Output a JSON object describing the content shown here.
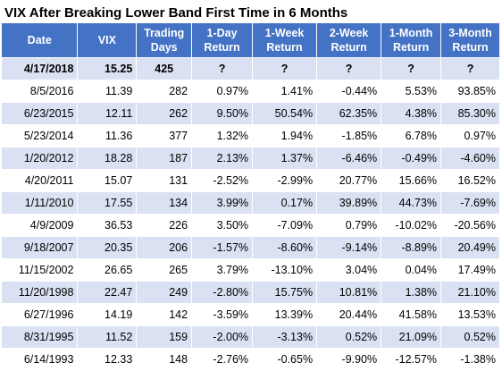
{
  "title": "VIX After Breaking Lower Band First Time in 6 Months",
  "colors": {
    "header_bg": "#4472c4",
    "header_text": "#ffffff",
    "band_row": "#d9e1f2",
    "plain_row": "#ffffff"
  },
  "table": {
    "headers": [
      [
        "Date"
      ],
      [
        "VIX"
      ],
      [
        "Trading",
        "Days"
      ],
      [
        "1-Day",
        "Return"
      ],
      [
        "1-Week",
        "Return"
      ],
      [
        "2-Week",
        "Return"
      ],
      [
        "1-Month",
        "Return"
      ],
      [
        "3-Month",
        "Return"
      ]
    ],
    "rows": [
      [
        "4/17/2018",
        "15.25",
        "425",
        "?",
        "?",
        "?",
        "?",
        "?"
      ],
      [
        "8/5/2016",
        "11.39",
        "282",
        "0.97%",
        "1.41%",
        "-0.44%",
        "5.53%",
        "93.85%"
      ],
      [
        "6/23/2015",
        "12.11",
        "262",
        "9.50%",
        "50.54%",
        "62.35%",
        "4.38%",
        "85.30%"
      ],
      [
        "5/23/2014",
        "11.36",
        "377",
        "1.32%",
        "1.94%",
        "-1.85%",
        "6.78%",
        "0.97%"
      ],
      [
        "1/20/2012",
        "18.28",
        "187",
        "2.13%",
        "1.37%",
        "-6.46%",
        "-0.49%",
        "-4.60%"
      ],
      [
        "4/20/2011",
        "15.07",
        "131",
        "-2.52%",
        "-2.99%",
        "20.77%",
        "15.66%",
        "16.52%"
      ],
      [
        "1/11/2010",
        "17.55",
        "134",
        "3.99%",
        "0.17%",
        "39.89%",
        "44.73%",
        "-7.69%"
      ],
      [
        "4/9/2009",
        "36.53",
        "226",
        "3.50%",
        "-7.09%",
        "0.79%",
        "-10.02%",
        "-20.56%"
      ],
      [
        "9/18/2007",
        "20.35",
        "206",
        "-1.57%",
        "-8.60%",
        "-9.14%",
        "-8.89%",
        "20.49%"
      ],
      [
        "11/15/2002",
        "26.65",
        "265",
        "3.79%",
        "-13.10%",
        "3.04%",
        "0.04%",
        "17.49%"
      ],
      [
        "11/20/1998",
        "22.47",
        "249",
        "-2.80%",
        "15.75%",
        "10.81%",
        "1.38%",
        "21.10%"
      ],
      [
        "6/27/1996",
        "14.19",
        "142",
        "-3.59%",
        "13.39%",
        "20.44%",
        "41.58%",
        "13.53%"
      ],
      [
        "8/31/1995",
        "11.52",
        "159",
        "-2.00%",
        "-3.13%",
        "0.52%",
        "21.09%",
        "0.52%"
      ],
      [
        "6/14/1993",
        "12.33",
        "148",
        "-2.76%",
        "-0.65%",
        "-9.90%",
        "-12.57%",
        "-1.38%"
      ]
    ]
  }
}
